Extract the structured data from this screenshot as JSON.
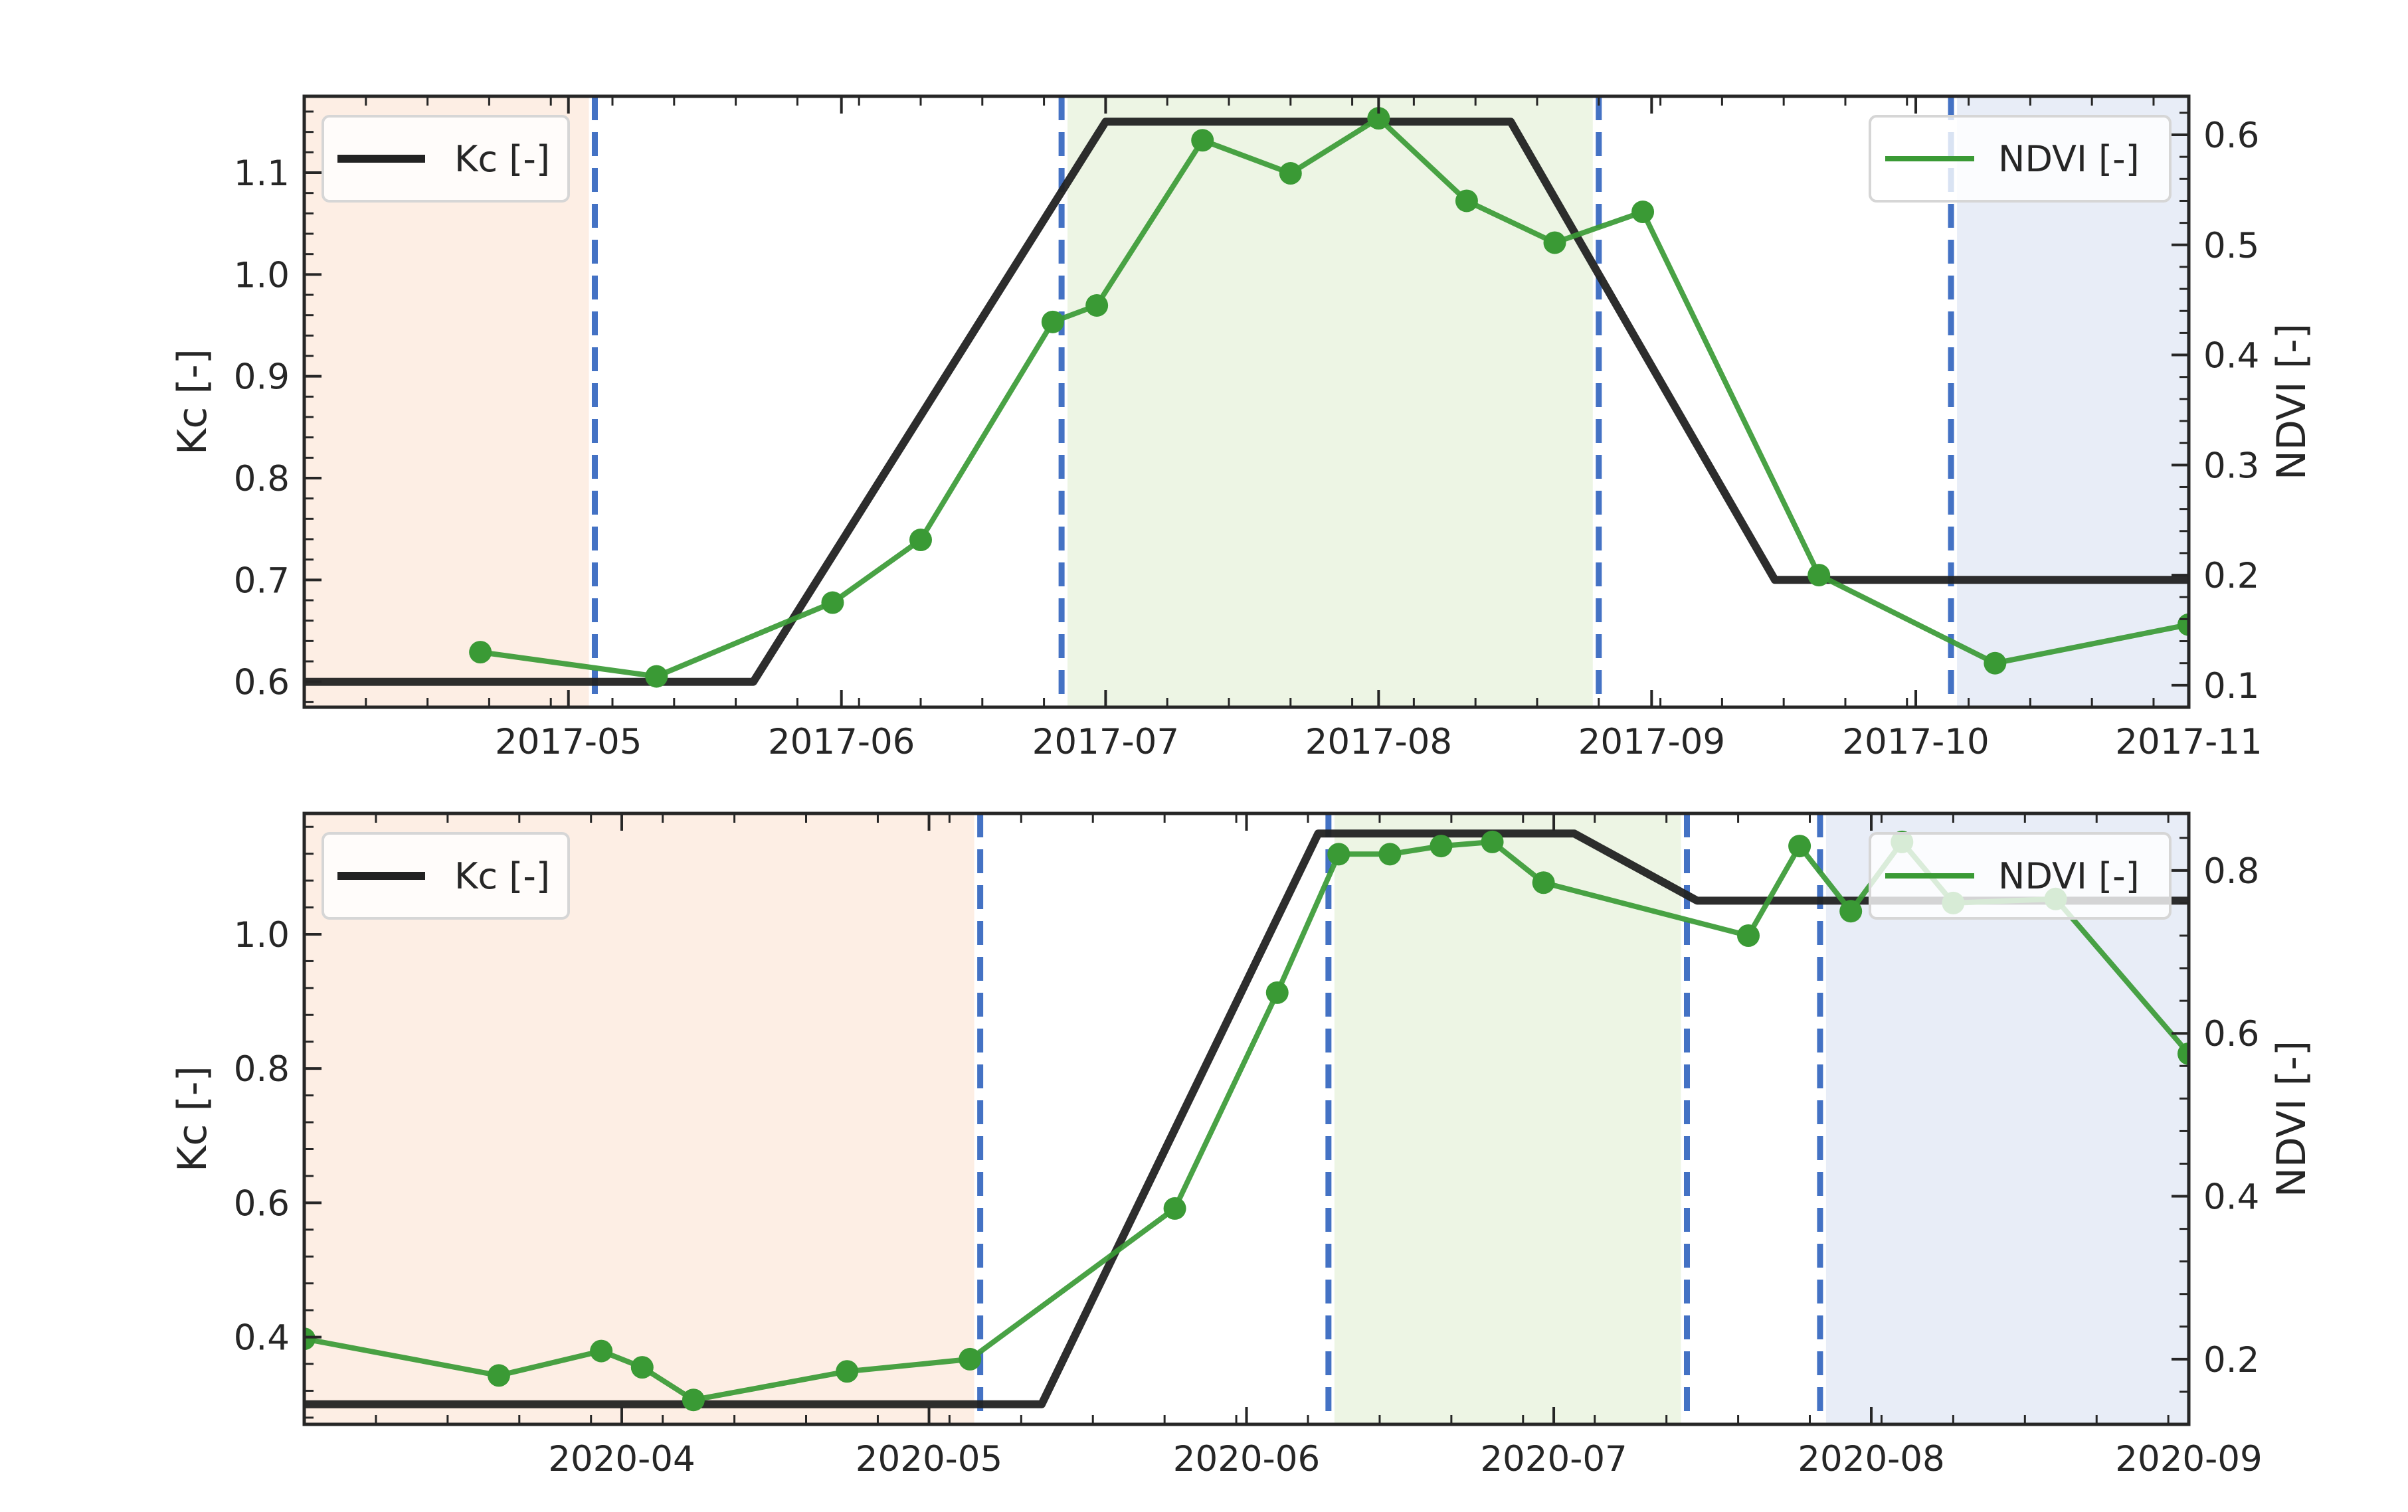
{
  "chart_data": [
    {
      "type": "line",
      "title": "",
      "ylabel": "Kc [-]",
      "y2label": "NDVI [-]",
      "xlim": [
        "2017-04-01",
        "2017-11-01"
      ],
      "ylim": [
        0.575,
        1.175
      ],
      "y2lim": [
        0.08,
        0.635
      ],
      "yticks": [
        0.6,
        0.7,
        0.8,
        0.9,
        1.0,
        1.1
      ],
      "ytick_labels": [
        "0.6",
        "0.7",
        "0.8",
        "0.9",
        "1.0",
        "1.1"
      ],
      "y2ticks": [
        0.1,
        0.2,
        0.3,
        0.4,
        0.5,
        0.6
      ],
      "y2tick_labels": [
        "0.1",
        "0.2",
        "0.3",
        "0.4",
        "0.5",
        "0.6"
      ],
      "xticks": [
        "2017-05-01",
        "2017-06-01",
        "2017-07-01",
        "2017-08-01",
        "2017-09-01",
        "2017-10-01",
        "2017-11-01"
      ],
      "xtick_labels": [
        "2017-05",
        "2017-06",
        "2017-07",
        "2017-08",
        "2017-09",
        "2017-10",
        "2017-11"
      ],
      "grid": false,
      "shaded_periods": [
        {
          "start": "2017-04-01",
          "end": "2017-05-04",
          "color": "#fdeee4"
        },
        {
          "start": "2017-06-26",
          "end": "2017-08-26",
          "color": "#edf5e4"
        },
        {
          "start": "2017-10-05",
          "end": "2017-11-01",
          "color": "#e8edf7"
        }
      ],
      "stage_boundaries": [
        "2017-05-04",
        "2017-06-26",
        "2017-08-26",
        "2017-10-05"
      ],
      "series": [
        {
          "name": "Kc [-]",
          "axis": "left",
          "color": "#222222",
          "x": [
            "2017-04-01",
            "2017-05-22",
            "2017-07-01",
            "2017-08-16",
            "2017-09-15",
            "2017-11-01"
          ],
          "y": [
            0.6,
            0.6,
            1.15,
            1.15,
            0.7,
            0.7
          ]
        },
        {
          "name": "NDVI [-]",
          "axis": "right",
          "color": "#3a9a35",
          "markers": true,
          "x": [
            "2017-04-21",
            "2017-05-11",
            "2017-05-31",
            "2017-06-10",
            "2017-06-25",
            "2017-06-30",
            "2017-07-12",
            "2017-07-22",
            "2017-08-01",
            "2017-08-11",
            "2017-08-21",
            "2017-08-31",
            "2017-09-20",
            "2017-10-10",
            "2017-11-01"
          ],
          "y": [
            0.13,
            0.108,
            0.175,
            0.232,
            0.43,
            0.445,
            0.595,
            0.565,
            0.615,
            0.54,
            0.502,
            0.53,
            0.2,
            0.12,
            0.155
          ]
        }
      ],
      "legend": [
        {
          "label": "Kc [-]",
          "placement": "top-left"
        },
        {
          "label": "NDVI [-]",
          "placement": "top-right"
        }
      ]
    },
    {
      "type": "line",
      "title": "",
      "ylabel": "Kc [-]",
      "y2label": "NDVI [-]",
      "xlim": [
        "2020-03-01",
        "2020-09-01"
      ],
      "ylim": [
        0.27,
        1.18
      ],
      "y2lim": [
        0.12,
        0.87
      ],
      "yticks": [
        0.4,
        0.6,
        0.8,
        1.0
      ],
      "ytick_labels": [
        "0.4",
        "0.6",
        "0.8",
        "1.0"
      ],
      "y2ticks": [
        0.2,
        0.4,
        0.6,
        0.8
      ],
      "y2tick_labels": [
        "0.2",
        "0.4",
        "0.6",
        "0.8"
      ],
      "xticks": [
        "2020-04-01",
        "2020-05-01",
        "2020-06-01",
        "2020-07-01",
        "2020-08-01",
        "2020-09-01"
      ],
      "xtick_labels": [
        "2020-04",
        "2020-05",
        "2020-06",
        "2020-07",
        "2020-08",
        "2020-09"
      ],
      "grid": false,
      "shaded_periods": [
        {
          "start": "2020-03-01",
          "end": "2020-05-06",
          "color": "#fdeee4"
        },
        {
          "start": "2020-06-09",
          "end": "2020-07-14",
          "color": "#edf5e4"
        },
        {
          "start": "2020-07-27",
          "end": "2020-09-01",
          "color": "#e8edf7"
        }
      ],
      "stage_boundaries": [
        "2020-05-06",
        "2020-06-09",
        "2020-07-14",
        "2020-07-27"
      ],
      "series": [
        {
          "name": "Kc [-]",
          "axis": "left",
          "color": "#222222",
          "x": [
            "2020-03-01",
            "2020-05-12",
            "2020-06-08",
            "2020-07-03",
            "2020-07-15",
            "2020-09-01"
          ],
          "y": [
            0.3,
            0.3,
            1.15,
            1.15,
            1.05,
            1.05
          ]
        },
        {
          "name": "NDVI [-]",
          "axis": "right",
          "color": "#3a9a35",
          "markers": true,
          "x": [
            "2020-03-01",
            "2020-03-20",
            "2020-03-30",
            "2020-04-03",
            "2020-04-08",
            "2020-04-23",
            "2020-05-05",
            "2020-05-25",
            "2020-06-04",
            "2020-06-10",
            "2020-06-15",
            "2020-06-20",
            "2020-06-25",
            "2020-06-30",
            "2020-07-20",
            "2020-07-25",
            "2020-07-30",
            "2020-08-04",
            "2020-08-09",
            "2020-08-19",
            "2020-09-01"
          ],
          "y": [
            0.225,
            0.18,
            0.21,
            0.19,
            0.15,
            0.185,
            0.2,
            0.385,
            0.65,
            0.82,
            0.82,
            0.83,
            0.835,
            0.785,
            0.72,
            0.83,
            0.75,
            0.835,
            0.76,
            0.765,
            0.575
          ]
        }
      ],
      "legend": [
        {
          "label": "Kc [-]",
          "placement": "top-left"
        },
        {
          "label": "NDVI [-]",
          "placement": "top-right"
        }
      ]
    }
  ]
}
